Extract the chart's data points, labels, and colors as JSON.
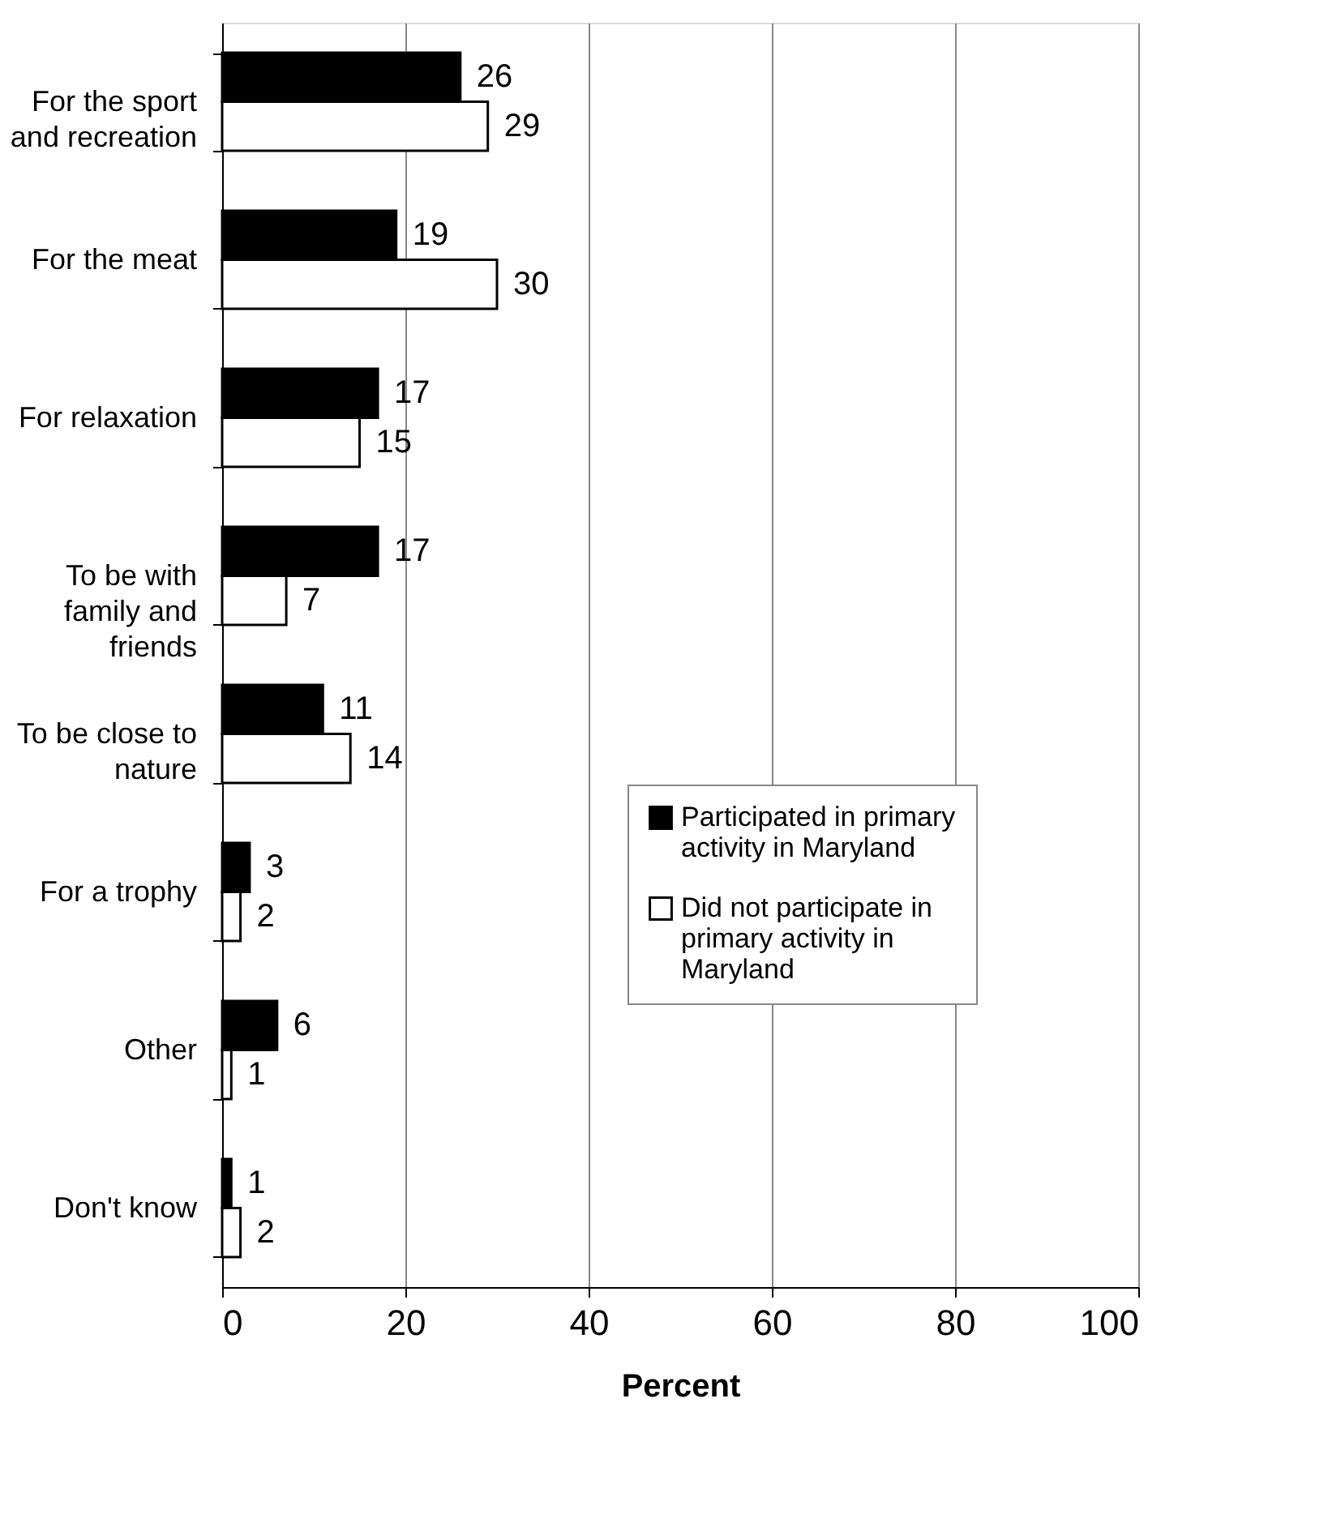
{
  "chart_data": {
    "type": "bar",
    "orientation": "horizontal",
    "xlabel": "Percent",
    "categories": [
      "For the sport\nand recreation",
      "For the meat",
      "For relaxation",
      "To be with\nfamily and\nfriends",
      "To be close to\nnature",
      "For a trophy",
      "Other",
      "Don't know"
    ],
    "series": [
      {
        "name": "Participated in primary activity in Maryland",
        "color": "#000000",
        "values": [
          26,
          19,
          17,
          17,
          11,
          3,
          6,
          1
        ]
      },
      {
        "name": "Did not participate in primary activity in Maryland",
        "color": "#ffffff",
        "values": [
          29,
          30,
          15,
          7,
          14,
          2,
          1,
          2
        ]
      }
    ],
    "xlim": [
      0,
      100
    ],
    "xticks": [
      0,
      20,
      40,
      60,
      80,
      100
    ],
    "grid": "x",
    "legend": "right",
    "data_labels": true
  }
}
